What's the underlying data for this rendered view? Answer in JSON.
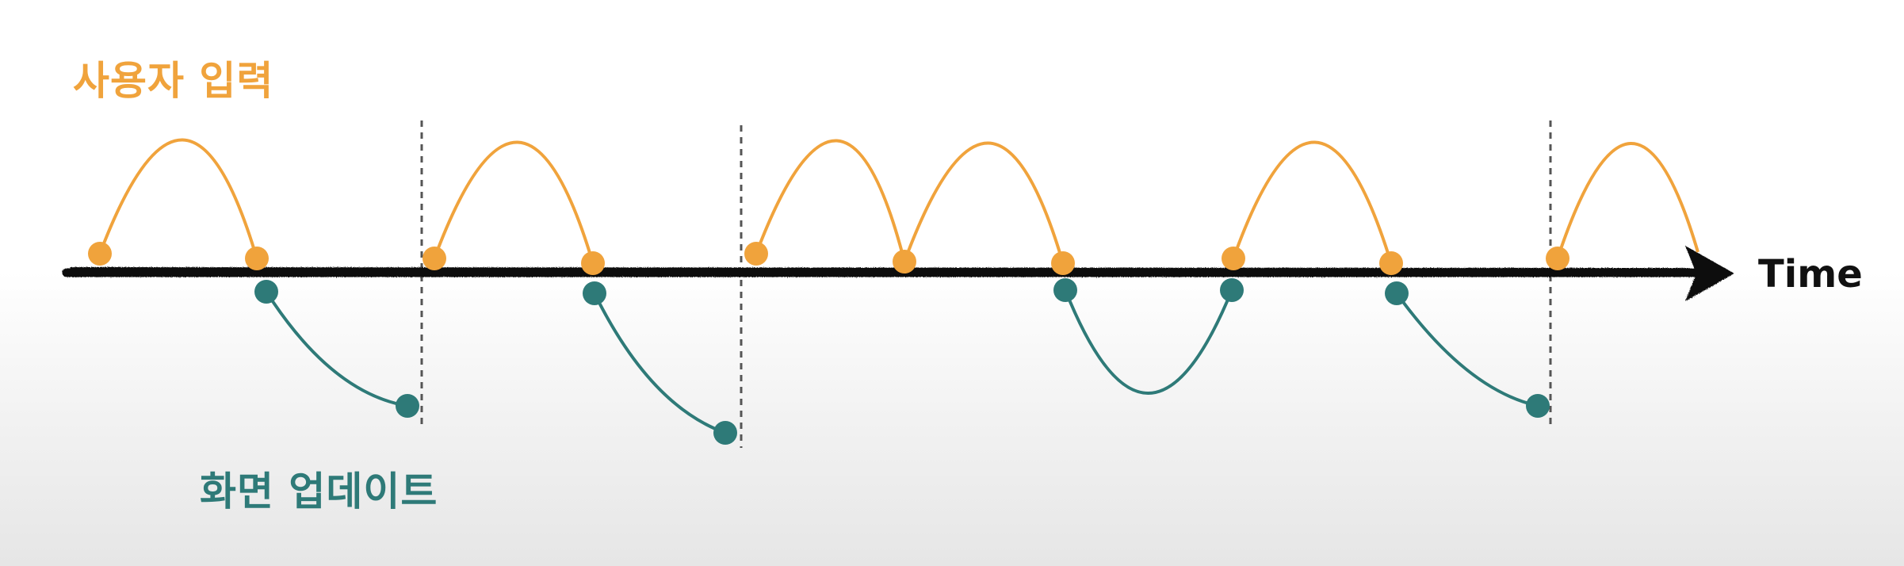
{
  "labels": {
    "user_input": "사용자 입력",
    "screen_update": "화면 업데이트",
    "time_axis": "Time"
  },
  "colors": {
    "user_input": "#F0A33C",
    "screen_update": "#2E7A78",
    "axis": "#111111",
    "frame_divider": "#555555"
  },
  "legend_series": [
    {
      "name": "사용자 입력",
      "color_key": "user_input"
    },
    {
      "name": "화면 업데이트",
      "color_key": "screen_update"
    }
  ]
}
